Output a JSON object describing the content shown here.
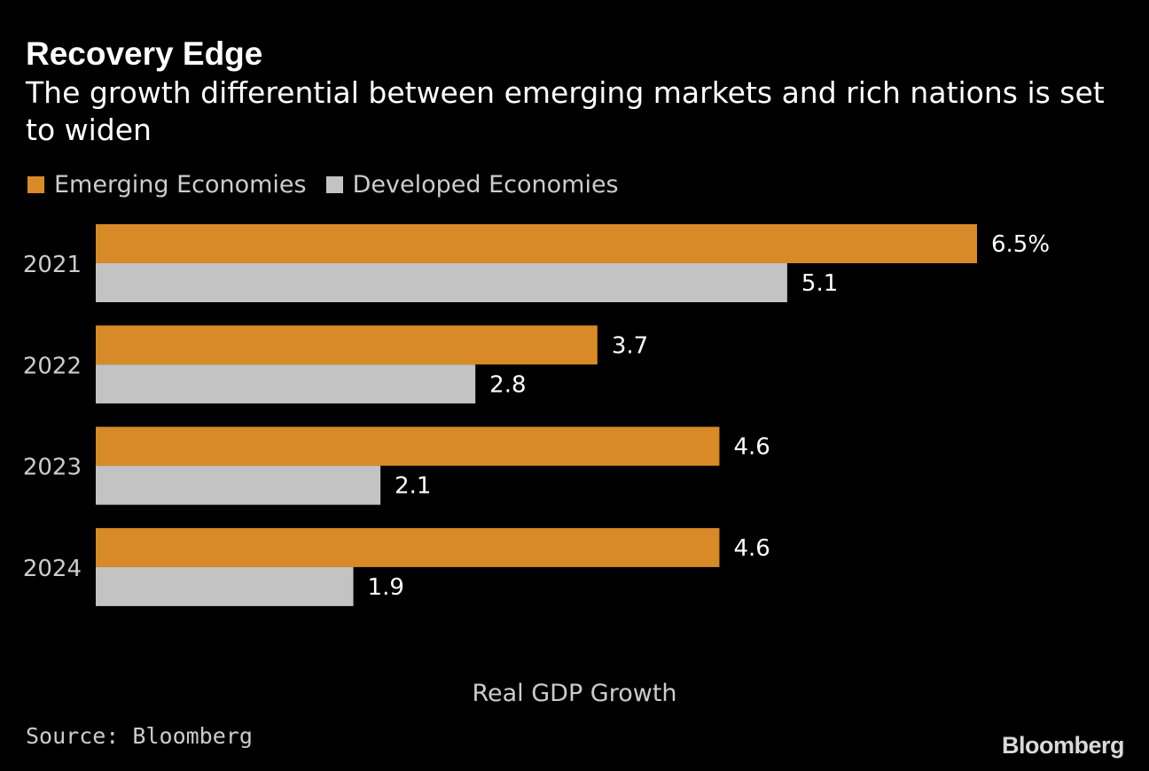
{
  "chart_data": {
    "type": "bar",
    "orientation": "horizontal",
    "title": "Recovery Edge",
    "subtitle": "The growth differential between emerging markets and rich nations is set to widen",
    "categories": [
      "2021",
      "2022",
      "2023",
      "2024"
    ],
    "series": [
      {
        "name": "Emerging Economies",
        "color": "#d98a28",
        "values": [
          6.5,
          3.7,
          4.6,
          4.6
        ],
        "labels": [
          "6.5%",
          "3.7",
          "4.6",
          "4.6"
        ]
      },
      {
        "name": "Developed Economies",
        "color": "#c3c3c3",
        "values": [
          5.1,
          2.8,
          2.1,
          1.9
        ],
        "labels": [
          "5.1",
          "2.8",
          "2.1",
          "1.9"
        ]
      }
    ],
    "xlabel": "Real GDP Growth",
    "ylabel": "",
    "xlim": [
      0,
      6.5
    ],
    "grid": false,
    "legend": "top-left"
  },
  "source": "Source: Bloomberg",
  "brand": "Bloomberg"
}
